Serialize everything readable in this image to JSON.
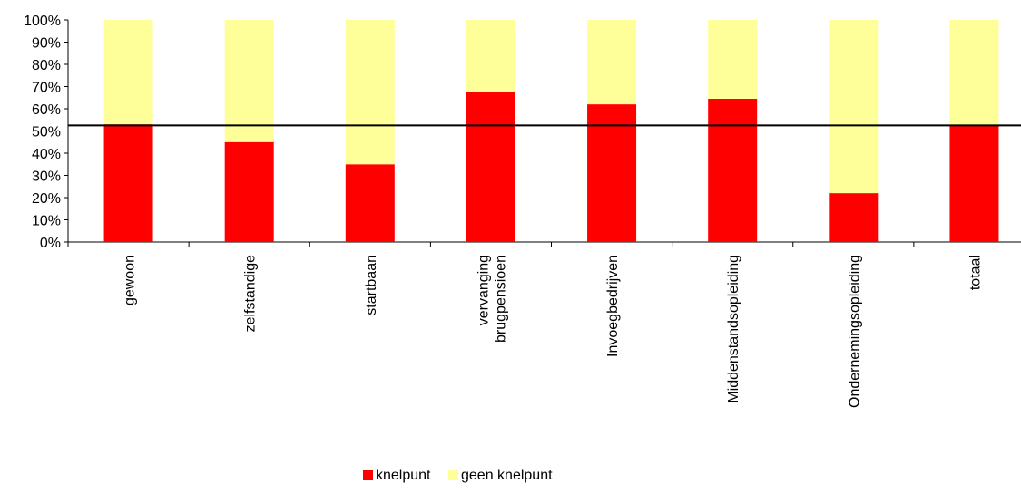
{
  "chart_data": {
    "type": "bar",
    "stacked": true,
    "percent": true,
    "categories": [
      [
        "gewoon"
      ],
      [
        "zelfstandige"
      ],
      [
        "startbaan"
      ],
      [
        "vervanging",
        "brugpensioen"
      ],
      [
        "Invoegbedrijven"
      ],
      [
        "Middenstandsopleiding"
      ],
      [
        "Ondernemingsopleiding"
      ],
      [
        "totaal"
      ]
    ],
    "series": [
      {
        "name": "knelpunt",
        "color": "#ff0000",
        "values": [
          53,
          45,
          35,
          67.5,
          62,
          64.5,
          22,
          52.5
        ]
      },
      {
        "name": "geen knelpunt",
        "color": "#ffff99",
        "values": [
          47,
          55,
          65,
          32.5,
          38,
          35.5,
          78,
          47.5
        ]
      }
    ],
    "reference_line": 52.5,
    "y_ticks": [
      "0%",
      "10%",
      "20%",
      "30%",
      "40%",
      "50%",
      "60%",
      "70%",
      "80%",
      "90%",
      "100%"
    ],
    "ylim": [
      0,
      100
    ],
    "title": "",
    "xlabel": "",
    "ylabel": "",
    "legend_position": "bottom"
  }
}
